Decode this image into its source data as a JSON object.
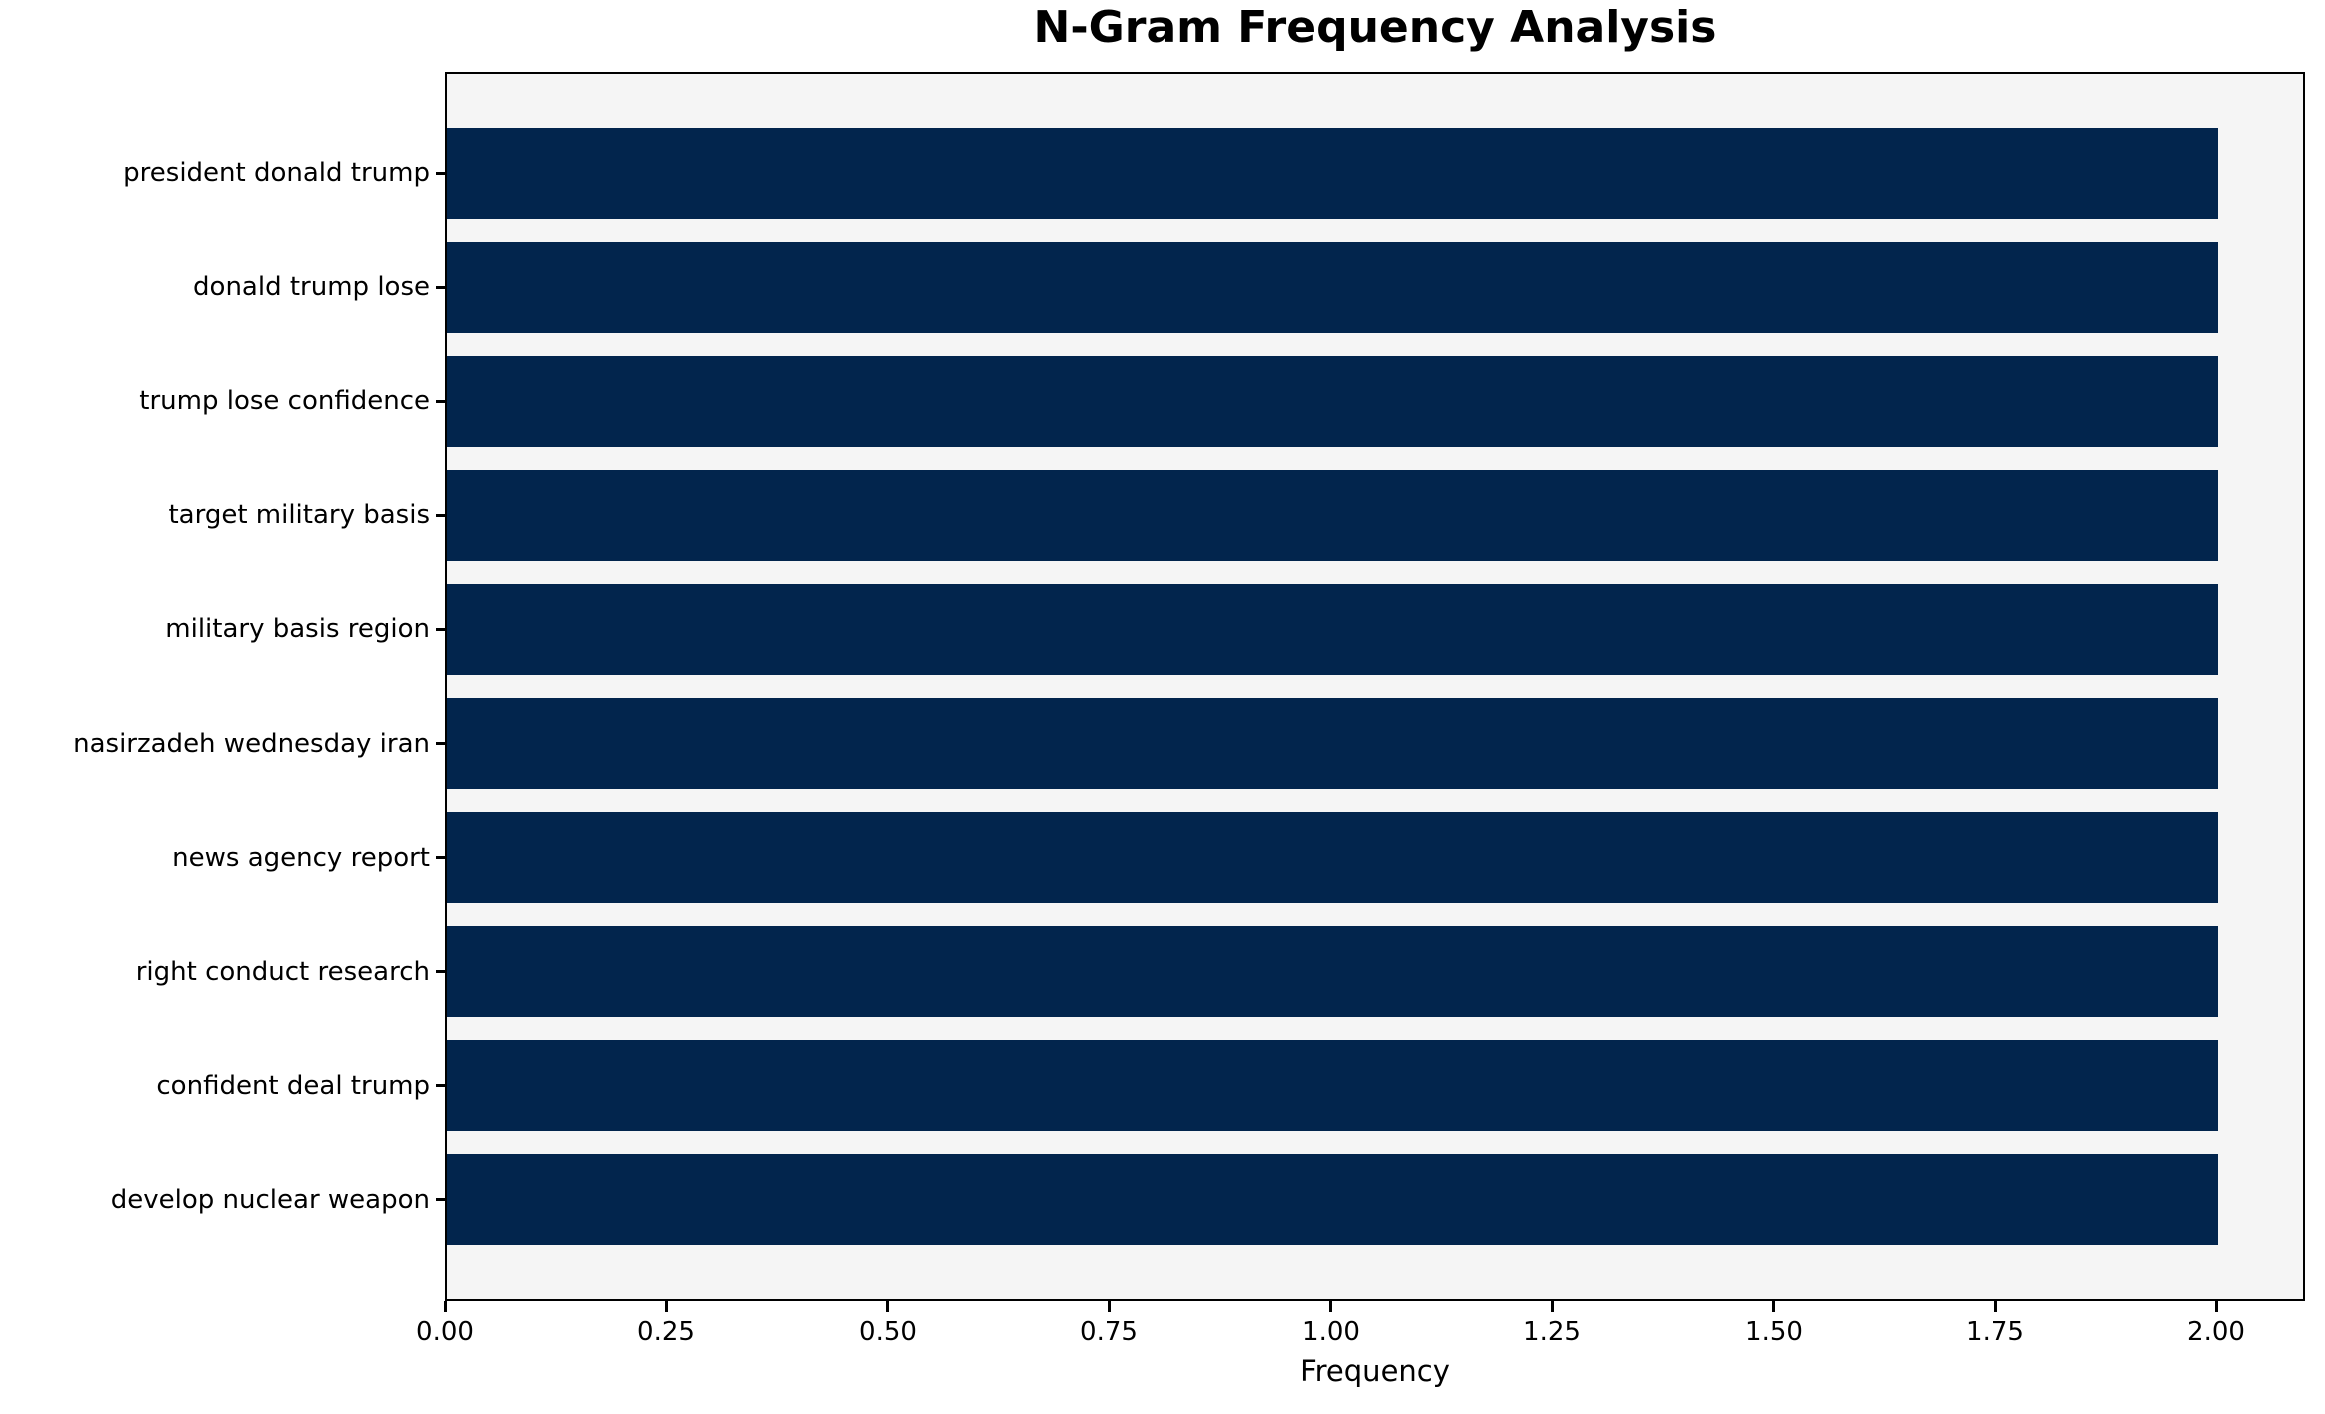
{
  "chart_data": {
    "type": "bar",
    "orientation": "horizontal",
    "title": "N-Gram Frequency Analysis",
    "xlabel": "Frequency",
    "ylabel": "",
    "categories": [
      "president donald trump",
      "donald trump lose",
      "trump lose confidence",
      "target military basis",
      "military basis region",
      "nasirzadeh wednesday iran",
      "news agency report",
      "right conduct research",
      "confident deal trump",
      "develop nuclear weapon"
    ],
    "values": [
      2,
      2,
      2,
      2,
      2,
      2,
      2,
      2,
      2,
      2
    ],
    "xlim": [
      0,
      2.1
    ],
    "xticks": [
      0,
      0.25,
      0.5,
      0.75,
      1,
      1.25,
      1.5,
      1.75,
      2
    ],
    "xtick_labels": [
      "0.00",
      "0.25",
      "0.50",
      "0.75",
      "1.00",
      "1.25",
      "1.50",
      "1.75",
      "2.00"
    ],
    "grid": false,
    "legend": "none",
    "colors": {
      "bar": "#02254d",
      "plot_background": "#f5f5f5",
      "figure_background": "#ffffff",
      "spine": "#000000",
      "text": "#000000"
    }
  }
}
